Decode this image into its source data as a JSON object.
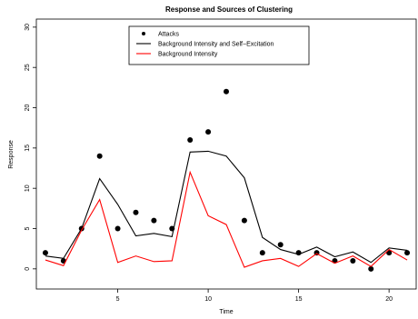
{
  "chart_data": {
    "type": "line",
    "title": "Response and Sources of Clustering",
    "xlabel": "Time",
    "ylabel": "Response",
    "xlim": [
      0.5,
      21.5
    ],
    "ylim": [
      -2.5,
      31
    ],
    "xticks": [
      5,
      10,
      15,
      20
    ],
    "yticks": [
      0,
      5,
      10,
      15,
      20,
      25,
      30
    ],
    "grid": false,
    "legend_position": "top-center",
    "x": [
      1,
      2,
      3,
      4,
      5,
      6,
      7,
      8,
      9,
      10,
      11,
      12,
      13,
      14,
      15,
      16,
      17,
      18,
      19,
      20,
      21
    ],
    "series": [
      {
        "name": "Attacks",
        "style": "points",
        "color": "#000000",
        "values": [
          2,
          1,
          5,
          14,
          5,
          7,
          6,
          5,
          16,
          17,
          22,
          6,
          2,
          3,
          2,
          2,
          1,
          1,
          0,
          2,
          2
        ]
      },
      {
        "name": "Background Intensity and Self−Excitation",
        "style": "line",
        "color": "#000000",
        "values": [
          1.6,
          1.3,
          5.0,
          11.2,
          8.0,
          4.1,
          4.4,
          4.0,
          14.5,
          14.6,
          14.0,
          11.3,
          3.9,
          2.4,
          1.8,
          2.7,
          1.5,
          2.1,
          0.8,
          2.6,
          2.3
        ]
      },
      {
        "name": "Background Intensity",
        "style": "line",
        "color": "#ff0000",
        "values": [
          1.1,
          0.4,
          4.8,
          8.6,
          0.8,
          1.6,
          0.9,
          1.0,
          12.0,
          6.6,
          5.5,
          0.2,
          1.0,
          1.3,
          0.3,
          1.9,
          0.7,
          1.6,
          0.3,
          2.4,
          1.1
        ]
      }
    ]
  }
}
